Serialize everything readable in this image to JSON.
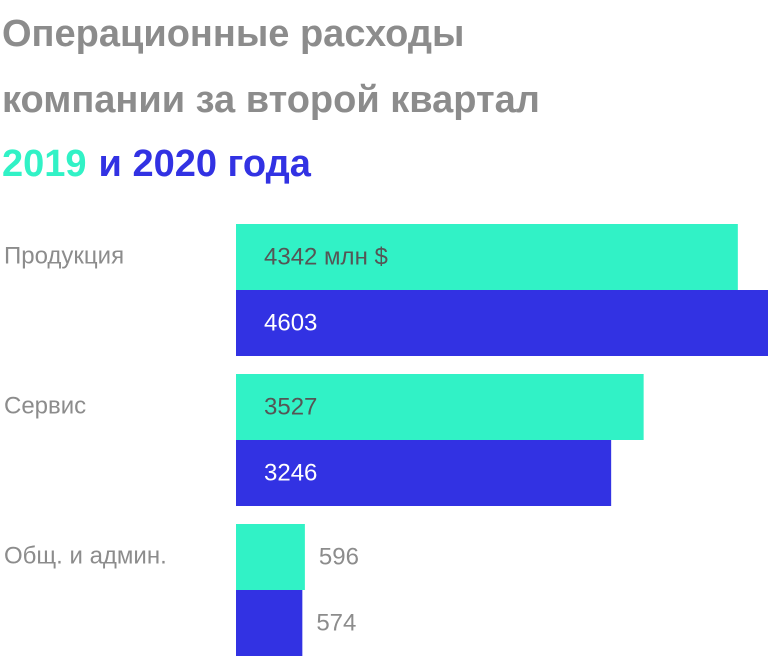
{
  "chart_data": {
    "type": "bar",
    "orientation": "horizontal",
    "title": [
      "Операционные расходы",
      "компании за второй квартал"
    ],
    "categories": [
      "Продукция",
      "Сервис",
      "Общ. и админ."
    ],
    "series": [
      {
        "name": "2019",
        "color": "#31f2c6",
        "values": [
          4342,
          3527,
          596
        ],
        "value_labels": [
          "4342 млн $",
          "3527",
          "596"
        ]
      },
      {
        "name": "и 2020 года",
        "color": "#3232e3",
        "values": [
          4603,
          3246,
          574
        ]
      }
    ]
  }
}
